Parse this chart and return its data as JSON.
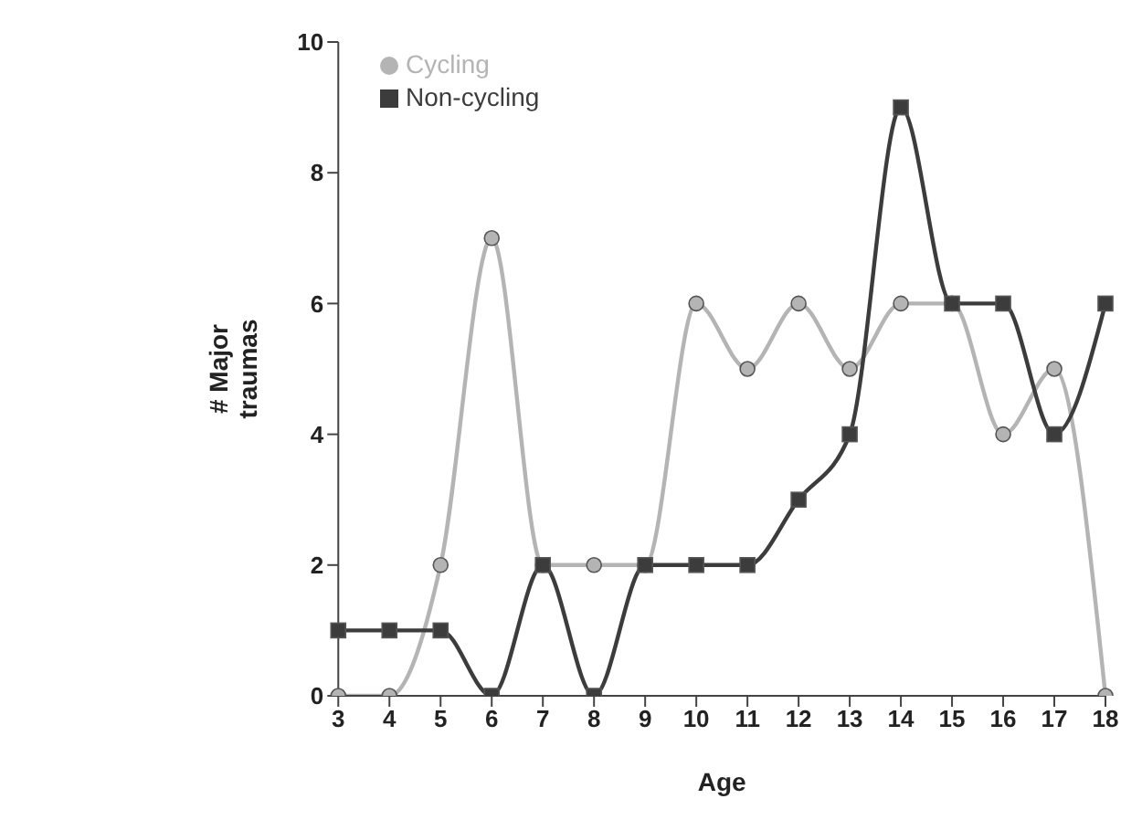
{
  "chart_data": {
    "type": "line",
    "xlabel": "Age",
    "ylabel": "# Major traumas",
    "categories": [
      "3",
      "4",
      "5",
      "6",
      "7",
      "8",
      "9",
      "10",
      "11",
      "12",
      "13",
      "14",
      "15",
      "16",
      "17",
      "18"
    ],
    "series": [
      {
        "name": "Cycling",
        "color": "#b4b4b4",
        "marker": "circle",
        "values": [
          0,
          0,
          2,
          7,
          2,
          2,
          2,
          6,
          5,
          6,
          5,
          6,
          6,
          4,
          5,
          0
        ]
      },
      {
        "name": "Non-cycling",
        "color": "#3c3c3c",
        "marker": "square",
        "values": [
          1,
          1,
          1,
          0,
          2,
          0,
          2,
          2,
          2,
          3,
          4,
          9,
          6,
          6,
          4,
          6
        ]
      }
    ],
    "ylim": [
      0,
      10
    ],
    "yticks": [
      0,
      2,
      4,
      6,
      8,
      10
    ],
    "grid": false,
    "legend": "top left"
  }
}
